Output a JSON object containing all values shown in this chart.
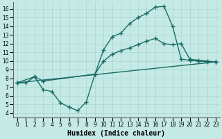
{
  "background_color": "#c5eae6",
  "grid_color": "#a8d5d0",
  "line_color": "#1a6b66",
  "line_width": 1.0,
  "marker": "+",
  "marker_size": 4,
  "xlabel": "Humidex (Indice chaleur)",
  "xlabel_fontsize": 7,
  "tick_fontsize": 5.5,
  "ylim": [
    3.5,
    16.8
  ],
  "xlim": [
    -0.5,
    23.5
  ],
  "yticks": [
    4,
    5,
    6,
    7,
    8,
    9,
    10,
    11,
    12,
    13,
    14,
    15,
    16
  ],
  "xticks": [
    0,
    1,
    2,
    3,
    4,
    5,
    6,
    7,
    8,
    9,
    10,
    11,
    12,
    13,
    14,
    15,
    16,
    17,
    18,
    19,
    20,
    21,
    22,
    23
  ],
  "curve1_x": [
    0,
    1,
    2,
    3,
    4,
    5,
    6,
    7,
    8,
    9,
    10,
    11,
    12,
    13,
    14,
    15,
    16,
    17,
    18,
    19,
    20,
    21,
    22,
    23
  ],
  "curve1_y": [
    7.5,
    7.5,
    8.2,
    6.7,
    6.5,
    5.2,
    4.7,
    4.3,
    5.3,
    8.5,
    11.3,
    12.8,
    13.2,
    14.3,
    15.0,
    15.5,
    16.2,
    16.3,
    14.0,
    10.2,
    10.1,
    10.0,
    9.9,
    9.9
  ],
  "curve2_x": [
    0,
    2,
    3,
    9,
    10,
    11,
    12,
    13,
    14,
    15,
    16,
    17,
    18,
    19,
    20,
    21,
    22,
    23
  ],
  "curve2_y": [
    7.5,
    8.2,
    7.7,
    8.5,
    10.0,
    10.8,
    11.2,
    11.5,
    11.9,
    12.3,
    12.6,
    12.0,
    11.9,
    12.0,
    10.2,
    10.1,
    10.0,
    9.9
  ],
  "curve3_x": [
    0,
    23
  ],
  "curve3_y": [
    7.5,
    9.9
  ]
}
